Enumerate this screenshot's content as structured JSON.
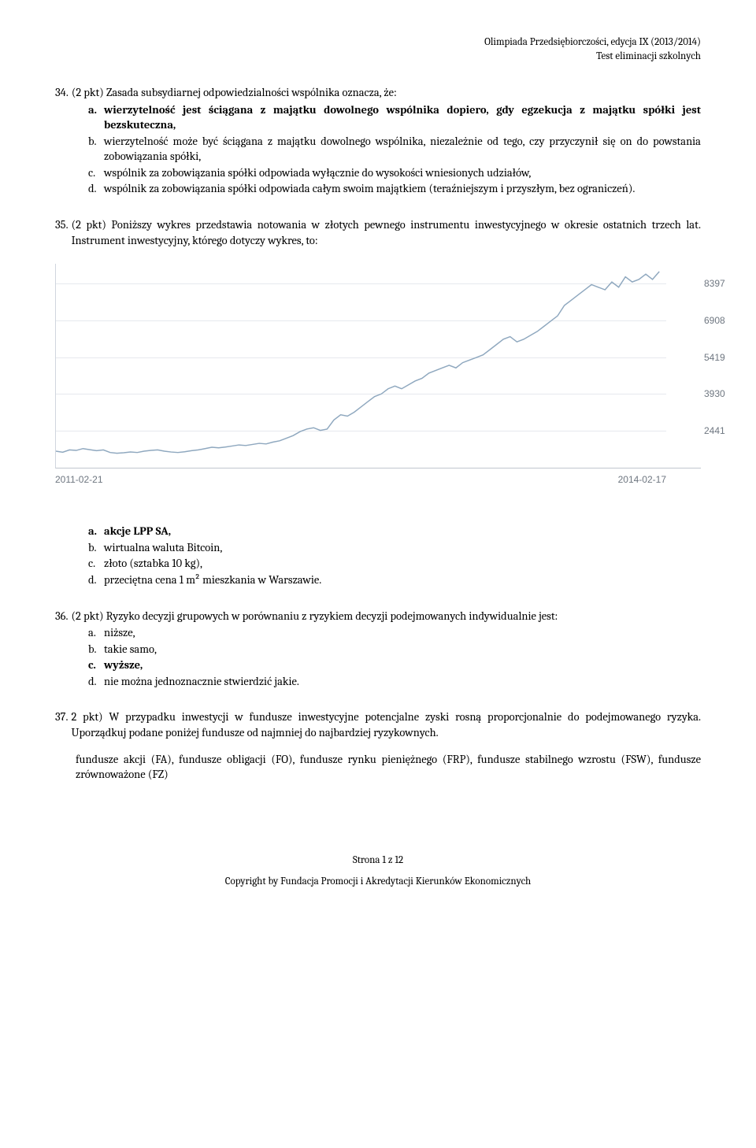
{
  "header": {
    "line1": "Olimpiada Przedsiębiorczości, edycja IX (2013/2014)",
    "line2": "Test eliminacji szkolnych"
  },
  "q34": {
    "num": "34.",
    "text": "(2 pkt) Zasada subsydiarnej odpowiedzialności wspólnika oznacza, że:",
    "opts": {
      "a_letter": "a.",
      "a_text": "wierzytelność jest ściągana z majątku dowolnego wspólnika dopiero, gdy egzekucja z majątku spółki jest bezskuteczna,",
      "b_letter": "b.",
      "b_text": "wierzytelność może być ściągana z majątku dowolnego wspólnika, niezależnie od tego, czy przyczynił się on do powstania zobowiązania spółki,",
      "c_letter": "c.",
      "c_text": "wspólnik za zobowiązania spółki odpowiada wyłącznie do wysokości wniesionych udziałów,",
      "d_letter": "d.",
      "d_text": "wspólnik za zobowiązania spółki odpowiada całym swoim majątkiem (teraźniejszym i przyszłym, bez ograniczeń)."
    }
  },
  "q35": {
    "num": "35.",
    "text": "(2 pkt) Poniższy wykres przedstawia notowania w złotych pewnego instrumentu inwestycyjnego w okresie ostatnich trzech lat. Instrument inwestycyjny, którego dotyczy wykres, to:",
    "opts": {
      "a_letter": "a.",
      "a_text": "akcje LPP SA,",
      "b_letter": "b.",
      "b_text": "wirtualna waluta Bitcoin,",
      "c_letter": "c.",
      "c_text": "złoto (sztabka 10 kg),",
      "d_letter": "d.",
      "d_text": "przeciętna cena 1 m² mieszkania w Warszawie."
    }
  },
  "chart": {
    "type": "line",
    "ylim_min": 900,
    "ylim_max": 9200,
    "ylabels": [
      8397,
      6908,
      5419,
      3930,
      2441
    ],
    "xlabel_start": "2011-02-21",
    "xlabel_end": "2014-02-17",
    "line_color": "#8fa8bf",
    "grid_color": "#e6e9ee",
    "label_color": "#6e7680",
    "label_fontsize": 12,
    "background": "#ffffff",
    "series": [
      2000,
      1960,
      2050,
      2030,
      2100,
      2060,
      2020,
      2050,
      1950,
      1920,
      1940,
      1970,
      1950,
      2000,
      2030,
      2050,
      2000,
      1970,
      1950,
      1980,
      2020,
      2050,
      2100,
      2150,
      2130,
      2160,
      2200,
      2240,
      2220,
      2260,
      2300,
      2280,
      2350,
      2400,
      2500,
      2600,
      2750,
      2850,
      2900,
      2800,
      2850,
      3200,
      3400,
      3350,
      3500,
      3700,
      3900,
      4100,
      4200,
      4400,
      4500,
      4400,
      4550,
      4700,
      4800,
      5000,
      5100,
      5200,
      5300,
      5200,
      5400,
      5500,
      5600,
      5700,
      5900,
      6100,
      6300,
      6400,
      6200,
      6300,
      6450,
      6600,
      6800,
      7000,
      7200,
      7600,
      7800,
      8000,
      8200,
      8400,
      8300,
      8200,
      8500,
      8300,
      8700,
      8500,
      8600,
      8800,
      8600,
      8900
    ]
  },
  "q36": {
    "num": "36.",
    "text": "(2 pkt) Ryzyko decyzji grupowych w porównaniu z ryzykiem decyzji podejmowanych indywidualnie jest:",
    "opts": {
      "a_letter": "a.",
      "a_text": "niższe,",
      "b_letter": "b.",
      "b_text": "takie samo,",
      "c_letter": "c.",
      "c_text": "wyższe,",
      "d_letter": "d.",
      "d_text": "nie można jednoznacznie stwierdzić jakie."
    }
  },
  "q37": {
    "num": "37.",
    "text1": "2 pkt) W przypadku inwestycji w fundusze inwestycyjne potencjalne zyski rosną proporcjonalnie do podejmowanego ryzyka. Uporządkuj podane poniżej fundusze od najmniej do najbardziej ryzykownych.",
    "text2": "fundusze akcji (FA), fundusze obligacji (FO), fundusze rynku pieniężnego (FRP), fundusze stabilnego wzrostu (FSW), fundusze zrównoważone (FZ)"
  },
  "footer": {
    "page": "Strona 1 z 12",
    "copy": "Copyright by Fundacja Promocji i Akredytacji Kierunków Ekonomicznych"
  }
}
